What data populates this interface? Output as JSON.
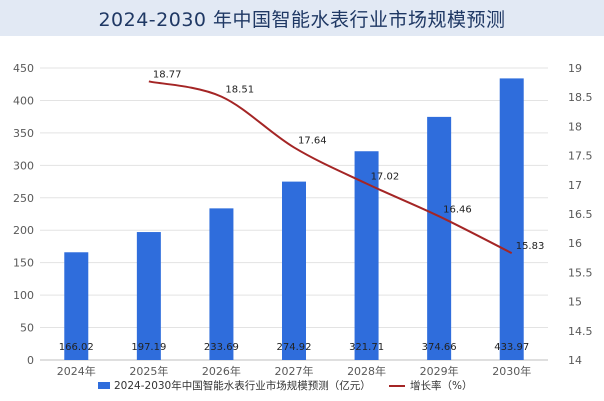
{
  "chart_data": {
    "type": "bar",
    "title": "2024-2030 年中国智能水表行业市场规模预测",
    "categories": [
      "2024年",
      "2025年",
      "2026年",
      "2027年",
      "2028年",
      "2029年",
      "2030年"
    ],
    "series": [
      {
        "name": "2024-2030年中国智能水表行业市场规模预测（亿元）",
        "type": "bar",
        "axis": "left",
        "values": [
          166.02,
          197.19,
          233.69,
          274.92,
          321.71,
          374.66,
          433.97
        ],
        "labels": [
          "166.02",
          "197.19",
          "233.69",
          "274.92",
          "321.71",
          "374.66",
          "433.97"
        ],
        "color": "#2f6ddc"
      },
      {
        "name": "增长率（%）",
        "type": "line",
        "axis": "right",
        "values": [
          null,
          18.77,
          18.51,
          17.64,
          17.02,
          16.46,
          15.83
        ],
        "labels": [
          "",
          "18.77",
          "18.51",
          "17.64",
          "17.02",
          "16.46",
          "15.83"
        ],
        "color": "#a42525"
      }
    ],
    "y_left": {
      "range": [
        0,
        450
      ],
      "ticks": [
        "0",
        "50",
        "100",
        "150",
        "200",
        "250",
        "300",
        "350",
        "400",
        "450"
      ]
    },
    "y_right": {
      "range": [
        14,
        19
      ],
      "ticks": [
        "14",
        "14.5",
        "15",
        "15.5",
        "16",
        "16.5",
        "17",
        "17.5",
        "18",
        "18.5",
        "19"
      ]
    },
    "grid": true,
    "legend": "bottom"
  }
}
